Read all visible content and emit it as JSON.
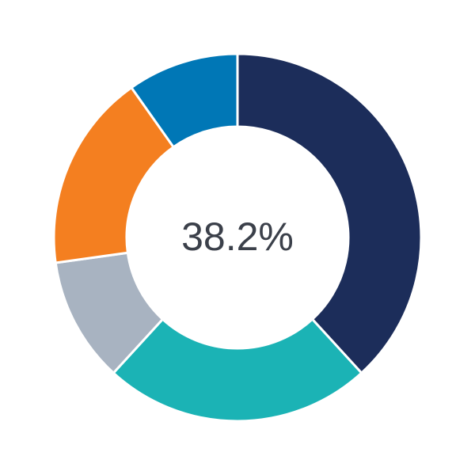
{
  "chart_data": {
    "type": "pie",
    "variant": "donut",
    "center_label": "38.2%",
    "start": "top",
    "direction": "clockwise",
    "values": [
      38.2,
      23.6,
      11.0,
      17.4,
      9.8
    ],
    "colors": [
      "#1c2d5a",
      "#1bb3b5",
      "#a8b3c1",
      "#f47f20",
      "#0077b6"
    ],
    "legend": "none"
  }
}
